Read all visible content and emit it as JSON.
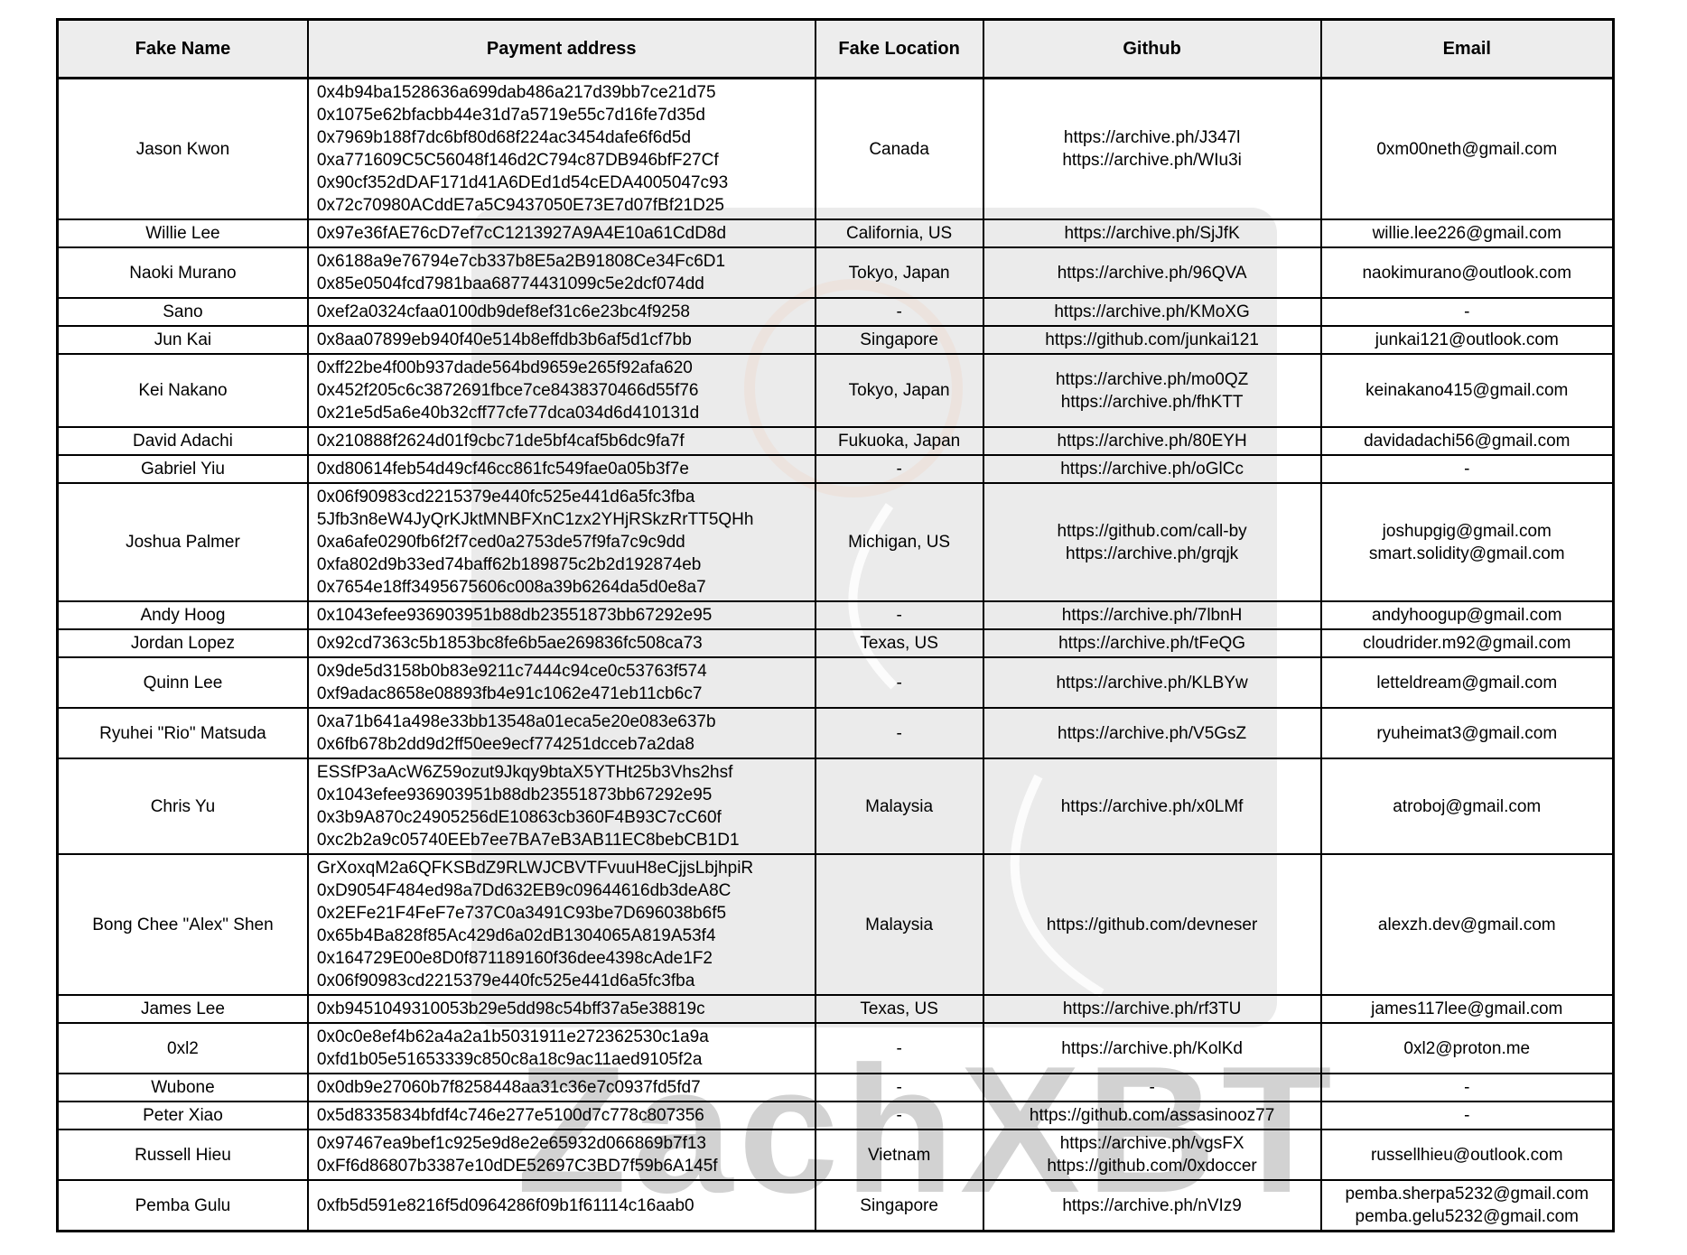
{
  "watermark": {
    "text": "ZachXBT"
  },
  "table": {
    "columns": [
      {
        "label": "Fake Name"
      },
      {
        "label": "Payment address"
      },
      {
        "label": "Fake Location"
      },
      {
        "label": "Github"
      },
      {
        "label": "Email"
      }
    ],
    "rows": [
      {
        "name": "Jason Kwon",
        "addresses": [
          "0x4b94ba1528636a699dab486a217d39bb7ce21d75",
          "0x1075e62bfacbb44e31d7a5719e55c7d16fe7d35d",
          "0x7969b188f7dc6bf80d68f224ac3454dafe6f6d5d",
          "0xa771609C5C56048f146d2C794c87DB946bfF27Cf",
          "0x90cf352dDAF171d41A6DEd1d54cEDA4005047c93",
          "0x72c70980ACddE7a5C9437050E73E7d07fBf21D25"
        ],
        "location": "Canada",
        "github": [
          "https://archive.ph/J347l",
          "https://archive.ph/WIu3i"
        ],
        "email": [
          "0xm00neth@gmail.com"
        ]
      },
      {
        "name": "Willie Lee",
        "addresses": [
          "0x97e36fAE76cD7ef7cC1213927A9A4E10a61CdD8d"
        ],
        "location": "California, US",
        "github": [
          "https://archive.ph/SjJfK"
        ],
        "email": [
          "willie.lee226@gmail.com"
        ]
      },
      {
        "name": "Naoki Murano",
        "addresses": [
          "0x6188a9e76794e7cb337b8E5a2B91808Ce34Fc6D1",
          "0x85e0504fcd7981baa68774431099c5e2dcf074dd"
        ],
        "location": "Tokyo, Japan",
        "github": [
          "https://archive.ph/96QVA"
        ],
        "email": [
          "naokimurano@outlook.com"
        ]
      },
      {
        "name": "Sano",
        "addresses": [
          "0xef2a0324cfaa0100db9def8ef31c6e23bc4f9258"
        ],
        "location": "-",
        "github": [
          "https://archive.ph/KMoXG"
        ],
        "email": [
          "-"
        ]
      },
      {
        "name": "Jun Kai",
        "addresses": [
          "0x8aa07899eb940f40e514b8effdb3b6af5d1cf7bb"
        ],
        "location": "Singapore",
        "github": [
          "https://github.com/junkai121"
        ],
        "email": [
          "junkai121@outlook.com"
        ]
      },
      {
        "name": "Kei Nakano",
        "addresses": [
          "0xff22be4f00b937dade564bd9659e265f92afa620",
          "0x452f205c6c3872691fbce7ce8438370466d55f76",
          "0x21e5d5a6e40b32cff77cfe77dca034d6d410131d"
        ],
        "location": "Tokyo, Japan",
        "github": [
          "https://archive.ph/mo0QZ",
          "https://archive.ph/fhKTT"
        ],
        "email": [
          "keinakano415@gmail.com"
        ]
      },
      {
        "name": "David Adachi",
        "addresses": [
          "0x210888f2624d01f9cbc71de5bf4caf5b6dc9fa7f"
        ],
        "location": "Fukuoka, Japan",
        "github": [
          "https://archive.ph/80EYH"
        ],
        "email": [
          "davidadachi56@gmail.com"
        ]
      },
      {
        "name": "Gabriel Yiu",
        "addresses": [
          "0xd80614feb54d49cf46cc861fc549fae0a05b3f7e"
        ],
        "location": "-",
        "github": [
          "https://archive.ph/oGlCc"
        ],
        "email": [
          "-"
        ]
      },
      {
        "name": "Joshua Palmer",
        "addresses": [
          "0x06f90983cd2215379e440fc525e441d6a5fc3fba",
          "5Jfb3n8eW4JyQrKJktMNBFXnC1zx2YHjRSkzRrTT5QHh",
          "0xa6afe0290fb6f2f7ced0a2753de57f9fa7c9c9dd",
          "0xfa802d9b33ed74baff62b189875c2b2d192874eb",
          "0x7654e18ff3495675606c008a39b6264da5d0e8a7"
        ],
        "location": "Michigan, US",
        "github": [
          "https://github.com/call-by",
          "https://archive.ph/grqjk"
        ],
        "email": [
          "joshupgig@gmail.com",
          "smart.solidity@gmail.com"
        ]
      },
      {
        "name": "Andy Hoog",
        "addresses": [
          "0x1043efee936903951b88db23551873bb67292e95"
        ],
        "location": "-",
        "github": [
          "https://archive.ph/7lbnH"
        ],
        "email": [
          "andyhoogup@gmail.com"
        ]
      },
      {
        "name": "Jordan Lopez",
        "addresses": [
          "0x92cd7363c5b1853bc8fe6b5ae269836fc508ca73"
        ],
        "location": "Texas, US",
        "github": [
          "https://archive.ph/tFeQG"
        ],
        "email": [
          "cloudrider.m92@gmail.com"
        ]
      },
      {
        "name": "Quinn Lee",
        "addresses": [
          "0x9de5d3158b0b83e9211c7444c94ce0c53763f574",
          "0xf9adac8658e08893fb4e91c1062e471eb11cb6c7"
        ],
        "location": "-",
        "github": [
          "https://archive.ph/KLBYw"
        ],
        "email": [
          "letteldream@gmail.com"
        ]
      },
      {
        "name": "Ryuhei \"Rio\" Matsuda",
        "addresses": [
          "0xa71b641a498e33bb13548a01eca5e20e083e637b",
          "0x6fb678b2dd9d2ff50ee9ecf774251dcceb7a2da8"
        ],
        "location": "-",
        "github": [
          "https://archive.ph/V5GsZ"
        ],
        "email": [
          "ryuheimat3@gmail.com"
        ]
      },
      {
        "name": "Chris Yu",
        "addresses": [
          "ESSfP3aAcW6Z59ozut9Jkqy9btaX5YTHt25b3Vhs2hsf",
          "0x1043efee936903951b88db23551873bb67292e95",
          "0x3b9A870c24905256dE10863cb360F4B93C7cC60f",
          "0xc2b2a9c05740EEb7ee7BA7eB3AB11EC8bebCB1D1"
        ],
        "location": "Malaysia",
        "github": [
          "https://archive.ph/x0LMf"
        ],
        "email": [
          "atroboj@gmail.com"
        ]
      },
      {
        "name": "Bong Chee \"Alex\" Shen",
        "addresses": [
          "GrXoxqM2a6QFKSBdZ9RLWJCBVTFvuuH8eCjjsLbjhpiR",
          "0xD9054F484ed98a7Dd632EB9c09644616db3deA8C",
          "0x2EFe21F4FeF7e737C0a3491C93be7D696038b6f5",
          "0x65b4Ba828f85Ac429d6a02dB1304065A819A53f4",
          "0x164729E00e8D0f871189160f36dee4398cAde1F2",
          "0x06f90983cd2215379e440fc525e441d6a5fc3fba"
        ],
        "location": "Malaysia",
        "github": [
          "https://github.com/devneser"
        ],
        "email": [
          "alexzh.dev@gmail.com"
        ]
      },
      {
        "name": "James Lee",
        "addresses": [
          "0xb9451049310053b29e5dd98c54bff37a5e38819c"
        ],
        "location": "Texas, US",
        "github": [
          "https://archive.ph/rf3TU"
        ],
        "email": [
          "james117lee@gmail.com"
        ]
      },
      {
        "name": "0xl2",
        "addresses": [
          "0x0c0e8ef4b62a4a2a1b5031911e272362530c1a9a",
          "0xfd1b05e51653339c850c8a18c9ac11aed9105f2a"
        ],
        "location": "-",
        "github": [
          "https://archive.ph/KolKd"
        ],
        "email": [
          "0xl2@proton.me"
        ]
      },
      {
        "name": "Wubone",
        "addresses": [
          "0x0db9e27060b7f8258448aa31c36e7c0937fd5fd7"
        ],
        "location": "-",
        "github": [
          "-"
        ],
        "email": [
          "-"
        ]
      },
      {
        "name": "Peter Xiao",
        "addresses": [
          "0x5d8335834bfdf4c746e277e5100d7c778c807356"
        ],
        "location": "-",
        "github": [
          "https://github.com/assasinooz77"
        ],
        "email": [
          "-"
        ]
      },
      {
        "name": "Russell Hieu",
        "addresses": [
          "0x97467ea9bef1c925e9d8e2e65932d066869b7f13",
          "0xFf6d86807b3387e10dDE52697C3BD7f59b6A145f"
        ],
        "location": "Vietnam",
        "github": [
          "https://archive.ph/vgsFX",
          "https://github.com/0xdoccer"
        ],
        "email": [
          "russellhieu@outlook.com"
        ]
      },
      {
        "name": "Pemba Gulu",
        "addresses": [
          "0xfb5d591e8216f5d0964286f09b1f61114c16aab0"
        ],
        "location": "Singapore",
        "github": [
          "https://archive.ph/nVIz9"
        ],
        "email": [
          "pemba.sherpa5232@gmail.com",
          "pemba.gelu5232@gmail.com"
        ]
      }
    ]
  }
}
